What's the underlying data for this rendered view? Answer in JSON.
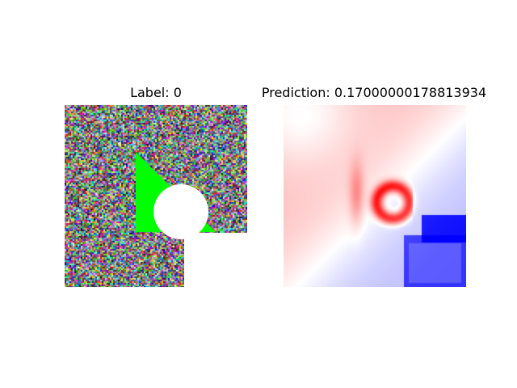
{
  "left_panel": {
    "title": "Label: 0",
    "noise_description": "random-rgb-noise",
    "shape_color": "#00ff00",
    "cutout_color": "#ffffff"
  },
  "right_panel": {
    "title": "Prediction: 0.17000000178813934",
    "colormap": "bwr",
    "positive_color": "#ff0000",
    "negative_color": "#0000ff",
    "neutral_color": "#ffffff"
  }
}
